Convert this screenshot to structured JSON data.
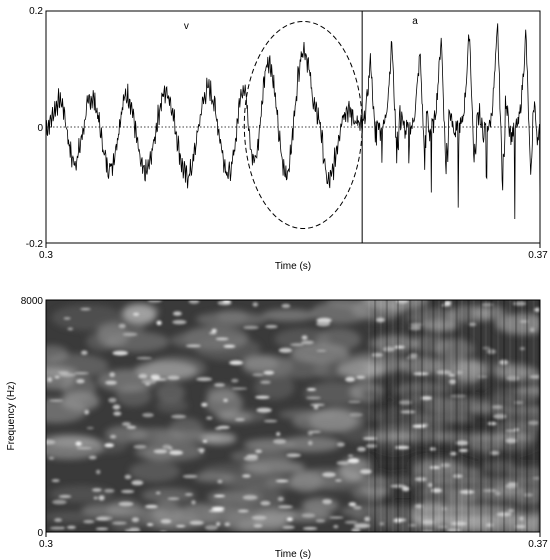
{
  "chart_data": [
    {
      "type": "line",
      "title": "",
      "xlabel": "Time (s)",
      "ylabel": "",
      "xlim": [
        0.3,
        0.37
      ],
      "ylim": [
        -0.2,
        0.2
      ],
      "x_tick_labels": [
        "0.3",
        "0.37"
      ],
      "y_tick_labels": [
        "0.2",
        "0",
        "-0.2"
      ],
      "y_tick_values": [
        0.2,
        0,
        -0.2
      ],
      "zero_line": "dotted",
      "segment_boundary_x": 0.3448,
      "segments": [
        {
          "label": "v",
          "x": 0.3199
        },
        {
          "label": "a",
          "x": 0.3523
        }
      ],
      "annotation": {
        "type": "dashed-ellipse",
        "x_range": [
          0.3281,
          0.3448
        ],
        "y_range": [
          -0.175,
          0.182
        ]
      },
      "series": [
        {
          "envelope": [
            [
              0.3,
              0.0
            ],
            [
              0.302,
              0.045
            ],
            [
              0.304,
              -0.06
            ],
            [
              0.3065,
              0.05
            ],
            [
              0.309,
              -0.07
            ],
            [
              0.3115,
              0.055
            ],
            [
              0.314,
              -0.08
            ],
            [
              0.317,
              0.06
            ],
            [
              0.32,
              -0.085
            ],
            [
              0.323,
              0.065
            ],
            [
              0.326,
              -0.08
            ],
            [
              0.328,
              0.07
            ],
            [
              0.3295,
              -0.06
            ],
            [
              0.3315,
              0.115
            ],
            [
              0.334,
              -0.08
            ],
            [
              0.3365,
              0.135
            ],
            [
              0.3385,
              0.02
            ],
            [
              0.34,
              -0.095
            ],
            [
              0.3425,
              0.03
            ],
            [
              0.3448,
              0.0
            ]
          ],
          "pulses": [
            {
              "x": 0.346,
              "peak": 0.12,
              "trough": -0.06
            },
            {
              "x": 0.349,
              "peak": 0.15,
              "trough": -0.09
            },
            {
              "x": 0.353,
              "peak": 0.13,
              "trough": -0.13
            },
            {
              "x": 0.356,
              "peak": 0.16,
              "trough": -0.15
            },
            {
              "x": 0.36,
              "peak": 0.17,
              "trough": -0.14
            },
            {
              "x": 0.364,
              "peak": 0.175,
              "trough": -0.19
            },
            {
              "x": 0.368,
              "peak": 0.165,
              "trough": -0.19
            }
          ]
        }
      ]
    },
    {
      "type": "heatmap",
      "title": "",
      "xlabel": "Time (s)",
      "ylabel": "Frequency (Hz)",
      "xlim": [
        0.3,
        0.37
      ],
      "ylim": [
        0,
        8000
      ],
      "x_tick_labels": [
        "0.3",
        "0.37"
      ],
      "y_tick_labels": [
        "8000",
        "0"
      ],
      "y_tick_values": [
        8000,
        0
      ],
      "colormap": "grayscale",
      "feature_note": "vertical striations after 0.345",
      "striation_start_x": 0.3448
    }
  ]
}
